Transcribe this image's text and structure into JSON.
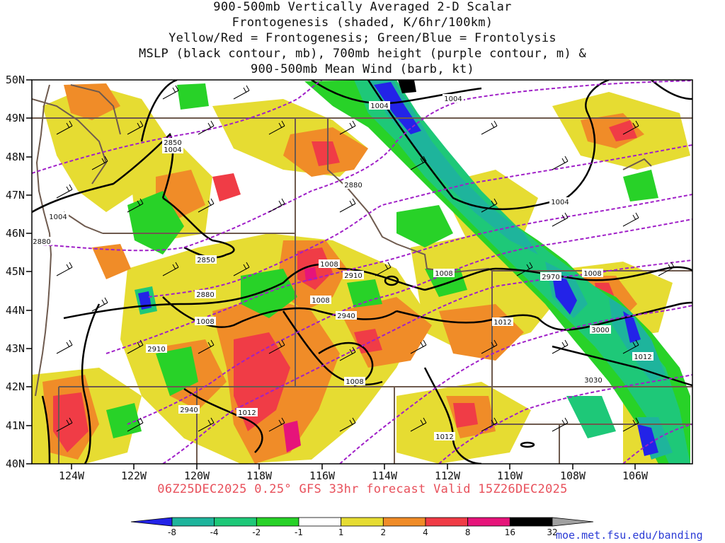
{
  "title_lines": [
    "900-500mb Vertically Averaged 2-D Scalar",
    "Frontogenesis (shaded, K/6hr/100km)",
    "Yellow/Red = Frontogenesis;  Green/Blue = Frontolysis",
    "MSLP (black contour, mb), 700mb height (purple contour, m) &",
    "900-500mb Mean Wind (barb, kt)"
  ],
  "subtitle": "06Z25DEC2025 0.25° GFS 33hr forecast Valid 15Z26DEC2025",
  "credit": "moe.met.fsu.edu/banding",
  "axes": {
    "lon_labels": [
      "124W",
      "122W",
      "120W",
      "118W",
      "116W",
      "114W",
      "112W",
      "110W",
      "108W",
      "106W"
    ],
    "lat_labels": [
      "40N",
      "41N",
      "42N",
      "43N",
      "44N",
      "45N",
      "46N",
      "47N",
      "48N",
      "49N",
      "50N"
    ]
  },
  "colorbar": {
    "labels": [
      "-8",
      "-4",
      "-2",
      "-1",
      "1",
      "2",
      "4",
      "8",
      "16",
      "32"
    ],
    "colors": [
      "#2323e8",
      "#1eb49c",
      "#1ec878",
      "#28d228",
      "#ffffff",
      "#e6dc32",
      "#f08c28",
      "#f03c46",
      "#e6147a",
      "#000000",
      "#a0a0a0"
    ]
  },
  "mslp_labels": [
    "1004",
    "1004",
    "1004",
    "1004",
    "1004",
    "1008",
    "1008",
    "1008",
    "1008",
    "1008",
    "1012",
    "1012",
    "1012",
    "1012"
  ],
  "height_labels": [
    "2850",
    "2850",
    "2880",
    "2880",
    "2880",
    "2910",
    "2910",
    "2940",
    "2940",
    "2970",
    "3000",
    "3030"
  ],
  "colors": {
    "mslp": "#000000",
    "height": "#a020c8",
    "borders": "#6e5a4e",
    "title_text": "#111111",
    "subtitle_text": "#e8505b",
    "credit_text": "#2b3bd6"
  }
}
